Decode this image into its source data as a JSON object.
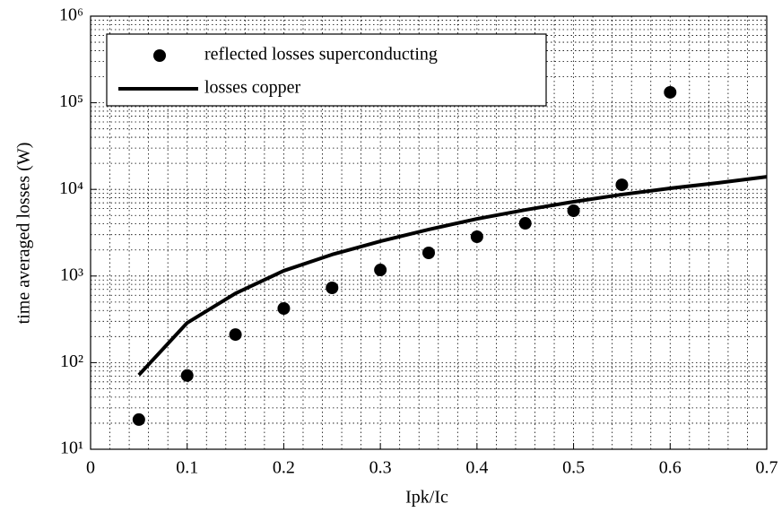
{
  "chart_data": {
    "type": "line",
    "x_label": "Ipk/Ic",
    "y_label": "time averaged losses (W)",
    "xlim": [
      0,
      0.7
    ],
    "xticks": [
      0,
      0.1,
      0.2,
      0.3,
      0.4,
      0.5,
      0.6,
      0.7
    ],
    "ylim": [
      10,
      1000000
    ],
    "log_y": true,
    "yticks": [
      {
        "value": 10,
        "label": "10¹"
      },
      {
        "value": 100,
        "label": "10²"
      },
      {
        "value": 1000,
        "label": "10³"
      },
      {
        "value": 10000,
        "label": "10⁴"
      },
      {
        "value": 100000,
        "label": "10⁵"
      },
      {
        "value": 1000000,
        "label": "10⁶"
      }
    ],
    "grid": true,
    "legend": "upper left",
    "series": [
      {
        "name": "reflected losses superconducting",
        "color": "#000000",
        "style": "markers",
        "x": [
          0.05,
          0.1,
          0.15,
          0.2,
          0.25,
          0.3,
          0.35,
          0.4,
          0.45,
          0.5,
          0.55,
          0.6
        ],
        "values": [
          22,
          71,
          211,
          422,
          730,
          1175,
          1850,
          2840,
          4060,
          5670,
          11300,
          132000
        ]
      },
      {
        "name": "losses copper",
        "color": "#000000",
        "style": "line",
        "x": [
          0.05,
          0.1,
          0.15,
          0.2,
          0.25,
          0.3,
          0.35,
          0.4,
          0.45,
          0.5,
          0.55,
          0.6,
          0.65,
          0.7
        ],
        "values": [
          72,
          288,
          630,
          1150,
          1770,
          2520,
          3440,
          4570,
          5800,
          7200,
          8720,
          10300,
          11900,
          14000
        ]
      }
    ]
  }
}
